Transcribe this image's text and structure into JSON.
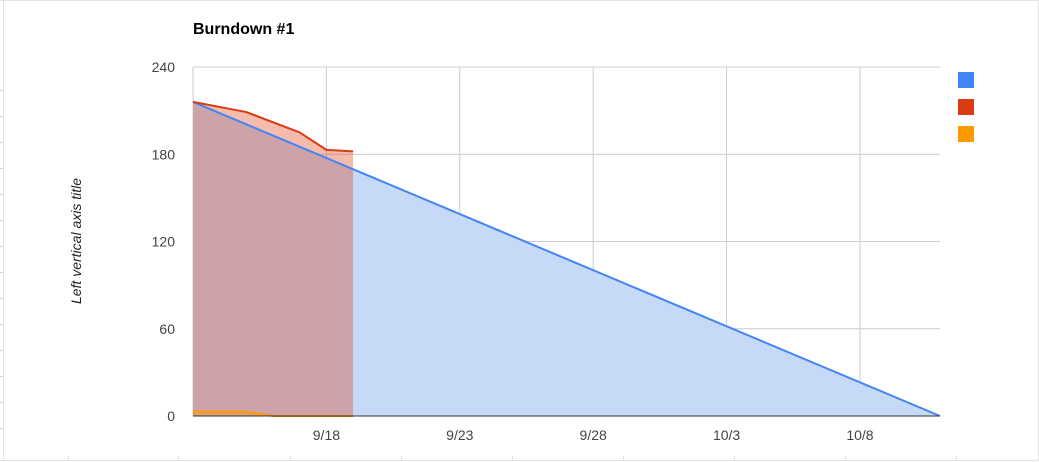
{
  "chart_data": {
    "type": "area",
    "title": "Burndown #1",
    "xlabel": "",
    "ylabel": "Left vertical axis title",
    "x_start": "9/13",
    "x_end": "10/11",
    "x_ticks": [
      "9/18",
      "9/23",
      "9/28",
      "10/3",
      "10/8"
    ],
    "y_ticks": [
      0,
      60,
      120,
      180,
      240
    ],
    "ylim": [
      0,
      240
    ],
    "grid": true,
    "legend_position": "right",
    "series": [
      {
        "color": "#4285f4",
        "fill": "#c6d9f7",
        "points": [
          [
            "9/13",
            216
          ],
          [
            "10/11",
            0
          ]
        ]
      },
      {
        "color": "#db3b13",
        "fill": "rgba(219,59,19,0.34)",
        "points": [
          [
            "9/13",
            216
          ],
          [
            "9/15",
            209
          ],
          [
            "9/17",
            195
          ],
          [
            "9/18",
            183
          ],
          [
            "9/19",
            182
          ]
        ]
      },
      {
        "color": "#ff9900",
        "fill": "rgba(255,153,0,0.35)",
        "points": [
          [
            "9/13",
            3
          ],
          [
            "9/15",
            3
          ],
          [
            "9/16",
            0
          ],
          [
            "9/19",
            0
          ]
        ]
      }
    ]
  }
}
